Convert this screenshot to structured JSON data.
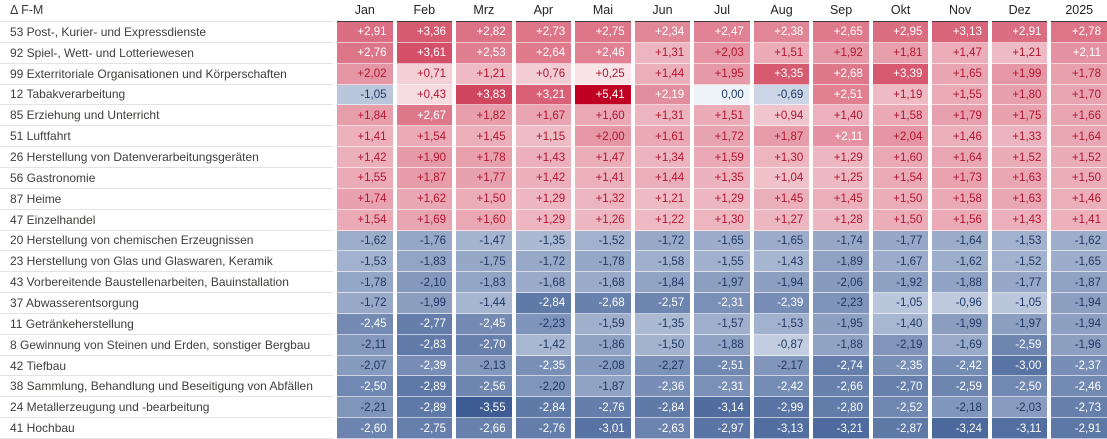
{
  "chart_data": {
    "type": "heatmap",
    "title": "Δ F-M",
    "columns": [
      "Jan",
      "Feb",
      "Mrz",
      "Apr",
      "Mai",
      "Jun",
      "Jul",
      "Aug",
      "Sep",
      "Okt",
      "Nov",
      "Dez",
      "2025"
    ],
    "rows": [
      {
        "label": "53 Post-, Kurier- und Expressdienste",
        "values": [
          2.91,
          3.36,
          2.82,
          2.73,
          2.75,
          2.34,
          2.47,
          2.38,
          2.65,
          2.95,
          3.13,
          2.91,
          2.78
        ]
      },
      {
        "label": "92 Spiel-, Wett- und Lotteriewesen",
        "values": [
          2.76,
          3.61,
          2.53,
          2.64,
          2.46,
          1.31,
          2.03,
          1.51,
          1.92,
          1.81,
          1.47,
          1.21,
          2.11
        ]
      },
      {
        "label": "99 Exterritoriale Organisationen und Körperschaften",
        "values": [
          2.02,
          0.71,
          1.21,
          0.76,
          0.25,
          1.44,
          1.95,
          3.35,
          2.68,
          3.39,
          1.65,
          1.99,
          1.78
        ]
      },
      {
        "label": "12 Tabakverarbeitung",
        "values": [
          -1.05,
          0.43,
          3.83,
          3.21,
          5.41,
          2.19,
          0,
          -0.69,
          2.51,
          1.19,
          1.55,
          1.8,
          1.7
        ]
      },
      {
        "label": "85 Erziehung und Unterricht",
        "values": [
          1.84,
          2.67,
          1.82,
          1.67,
          1.6,
          1.31,
          1.51,
          0.94,
          1.4,
          1.58,
          1.79,
          1.75,
          1.66
        ]
      },
      {
        "label": "51 Luftfahrt",
        "values": [
          1.41,
          1.54,
          1.45,
          1.15,
          2.0,
          1.61,
          1.72,
          1.87,
          2.11,
          2.04,
          1.46,
          1.33,
          1.64
        ]
      },
      {
        "label": "26 Herstellung von Datenverarbeitungsgeräten",
        "values": [
          1.42,
          1.9,
          1.78,
          1.43,
          1.47,
          1.34,
          1.59,
          1.3,
          1.29,
          1.6,
          1.64,
          1.52,
          1.52
        ]
      },
      {
        "label": "56 Gastronomie",
        "values": [
          1.55,
          1.87,
          1.77,
          1.42,
          1.41,
          1.44,
          1.35,
          1.04,
          1.25,
          1.54,
          1.73,
          1.63,
          1.5
        ]
      },
      {
        "label": "87 Heime",
        "values": [
          1.74,
          1.62,
          1.5,
          1.29,
          1.32,
          1.21,
          1.29,
          1.45,
          1.45,
          1.5,
          1.58,
          1.63,
          1.46
        ]
      },
      {
        "label": "47 Einzelhandel",
        "values": [
          1.54,
          1.69,
          1.6,
          1.29,
          1.26,
          1.22,
          1.3,
          1.27,
          1.28,
          1.5,
          1.56,
          1.43,
          1.41
        ]
      },
      {
        "label": "20 Herstellung von chemischen Erzeugnissen",
        "values": [
          -1.62,
          -1.76,
          -1.47,
          -1.35,
          -1.52,
          -1.72,
          -1.65,
          -1.65,
          -1.74,
          -1.77,
          -1.64,
          -1.53,
          -1.62
        ]
      },
      {
        "label": "23 Herstellung von Glas und Glaswaren, Keramik",
        "values": [
          -1.53,
          -1.83,
          -1.75,
          -1.72,
          -1.78,
          -1.58,
          -1.55,
          -1.43,
          -1.89,
          -1.67,
          -1.62,
          -1.52,
          -1.65
        ]
      },
      {
        "label": "43 Vorbereitende Baustellenarbeiten, Bauinstallation",
        "values": [
          -1.78,
          -2.1,
          -1.83,
          -1.68,
          -1.68,
          -1.84,
          -1.97,
          -1.94,
          -2.06,
          -1.92,
          -1.88,
          -1.77,
          -1.87
        ]
      },
      {
        "label": "37 Abwasserentsorgung",
        "values": [
          -1.72,
          -1.99,
          -1.44,
          -2.84,
          -2.68,
          -2.57,
          -2.31,
          -2.39,
          -2.23,
          -1.05,
          -0.96,
          -1.05,
          -1.94
        ]
      },
      {
        "label": "11 Getränkeherstellung",
        "values": [
          -2.45,
          -2.77,
          -2.45,
          -2.23,
          -1.59,
          -1.35,
          -1.57,
          -1.53,
          -1.95,
          -1.4,
          -1.99,
          -1.97,
          -1.94
        ]
      },
      {
        "label": "8 Gewinnung von Steinen und Erden, sonstiger Bergbau",
        "values": [
          -2.11,
          -2.83,
          -2.7,
          -1.42,
          -1.86,
          -1.5,
          -1.88,
          -0.87,
          -1.88,
          -2.19,
          -1.69,
          -2.59,
          -1.96
        ]
      },
      {
        "label": "42 Tiefbau",
        "values": [
          -2.07,
          -2.39,
          -2.13,
          -2.35,
          -2.08,
          -2.27,
          -2.51,
          -2.17,
          -2.74,
          -2.35,
          -2.42,
          -3.0,
          -2.37
        ]
      },
      {
        "label": "38 Sammlung, Behandlung und Beseitigung von Abfällen",
        "values": [
          -2.5,
          -2.89,
          -2.56,
          -2.2,
          -1.87,
          -2.36,
          -2.31,
          -2.42,
          -2.66,
          -2.7,
          -2.59,
          -2.5,
          -2.46
        ]
      },
      {
        "label": "24 Metallerzeugung und -bearbeitung",
        "values": [
          -2.21,
          -2.89,
          -3.55,
          -2.84,
          -2.76,
          -2.84,
          -3.14,
          -2.99,
          -2.8,
          -2.52,
          -2.18,
          -2.03,
          -2.73
        ]
      },
      {
        "label": "41 Hochbau",
        "values": [
          -2.6,
          -2.75,
          -2.66,
          -2.76,
          -3.01,
          -2.63,
          -2.97,
          -3.13,
          -3.21,
          -2.87,
          -3.24,
          -3.11,
          -2.91
        ]
      }
    ],
    "value_format": "signed, 2 decimals, comma decimal separator (e.g. +2,91 / -1,05 / 0,00)",
    "color_scale": {
      "max_positive_value": 5.41,
      "max_negative_value": -3.55,
      "positive_extreme_color": "#C00023",
      "negative_extreme_color": "#3D5C94",
      "positive_base_color": "#FBEFF1",
      "negative_base_color": "#EEF2F9",
      "positive_dark_text_color": "#B21531",
      "negative_dark_text_color": "#1F3864",
      "light_text_color": "#FFFFFF",
      "white_text_threshold_positive_ratio": 0.38,
      "white_text_threshold_negative_ratio": 0.645
    },
    "layout": {
      "legend": "none",
      "grid": "row separators + column gaps"
    }
  }
}
